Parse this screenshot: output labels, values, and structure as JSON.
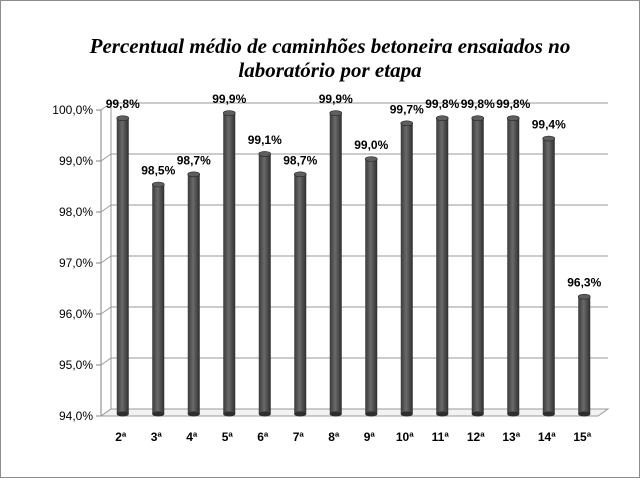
{
  "chart_data": {
    "type": "bar",
    "title": "Percentual médio de caminhões betoneira ensaiados no laboratório por etapa",
    "xlabel": "",
    "ylabel": "",
    "categories": [
      "2ª",
      "3ª",
      "4ª",
      "5ª",
      "6ª",
      "7ª",
      "8ª",
      "9ª",
      "10ª",
      "11ª",
      "12ª",
      "13ª",
      "14ª",
      "15ª"
    ],
    "values": [
      99.8,
      98.5,
      98.7,
      99.9,
      99.1,
      98.7,
      99.9,
      99.0,
      99.7,
      99.8,
      99.8,
      99.8,
      99.4,
      96.3
    ],
    "data_labels": [
      "99,8%",
      "98,5%",
      "98,7%",
      "99,9%",
      "99,1%",
      "98,7%",
      "99,9%",
      "99,0%",
      "99,7%",
      "99,8%",
      "99,8%",
      "99,8%",
      "99,4%",
      "96,3%"
    ],
    "ylim": [
      94.0,
      100.0
    ],
    "yticks": [
      94.0,
      95.0,
      96.0,
      97.0,
      98.0,
      99.0,
      100.0
    ],
    "ytick_labels": [
      "94,0%",
      "95,0%",
      "96,0%",
      "97,0%",
      "98,0%",
      "99,0%",
      "100,0%"
    ],
    "grid": true,
    "legend": "none",
    "colors": {
      "bar": "#4d4d4d",
      "grid": "#9a9a9a"
    }
  }
}
